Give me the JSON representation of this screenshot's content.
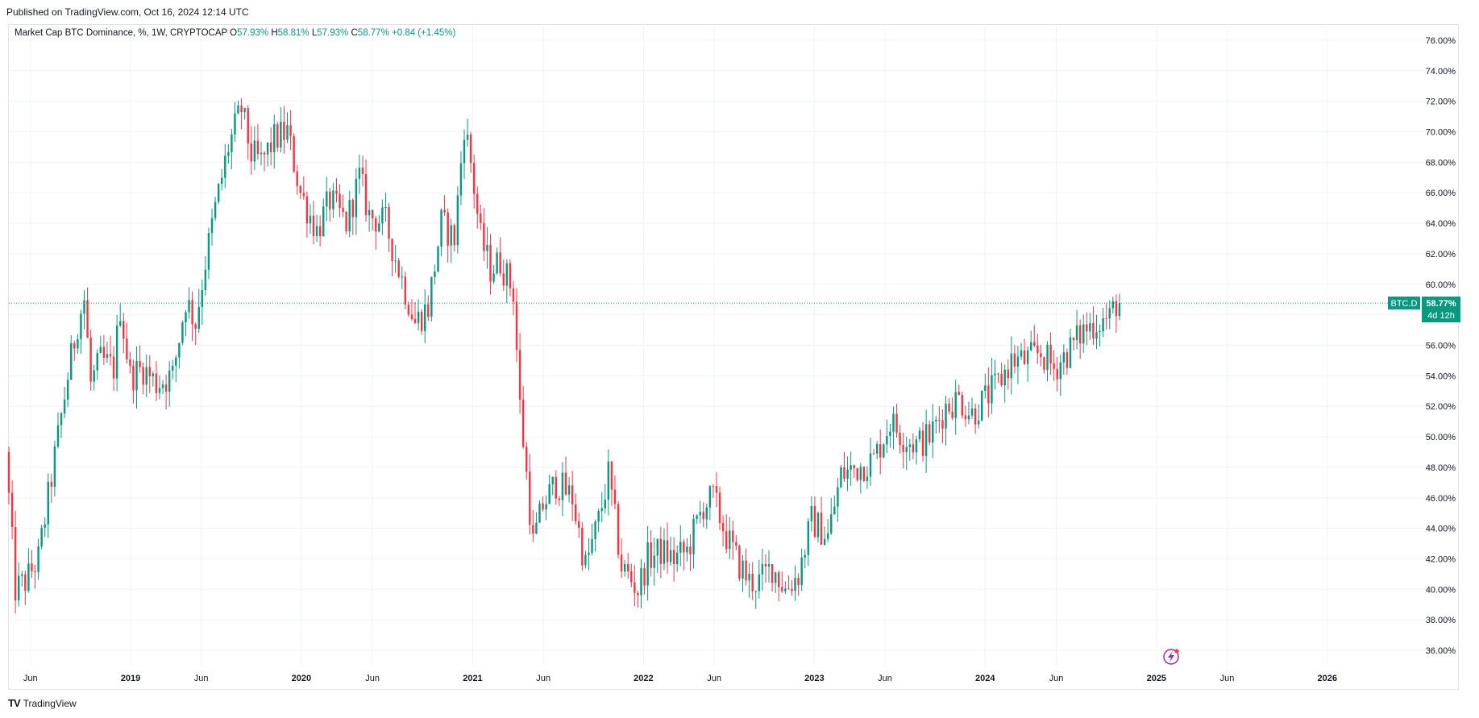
{
  "header": {
    "published": "Published on TradingView.com, Oct 16, 2024 12:14 UTC"
  },
  "legend": {
    "symbol": "Market Cap BTC Dominance, %, 1W, CRYPTOCAP",
    "o_label": "O",
    "o_value": "57.93%",
    "h_label": "H",
    "h_value": "58.81%",
    "l_label": "L",
    "l_value": "57.93%",
    "c_label": "C",
    "c_value": "58.77%",
    "change": "+0.84 (+1.45%)"
  },
  "price_tag": {
    "symbol": "BTC.D",
    "value": "58.77%",
    "countdown": "4d 12h"
  },
  "footer": {
    "brand": "TradingView",
    "logo": "TV"
  },
  "colors": {
    "up": "#089981",
    "down": "#f23645",
    "grid": "#f0f3fa",
    "last_line": "#089981"
  },
  "icons": {
    "lightning": "lightning-icon"
  },
  "chart_data": {
    "type": "candlestick",
    "y_unit": "%",
    "ylim": [
      35,
      77
    ],
    "x_range": [
      "2018-04-16",
      "2026-07-15"
    ],
    "y_ticks": [
      "76.00%",
      "74.00%",
      "72.00%",
      "70.00%",
      "68.00%",
      "66.00%",
      "64.00%",
      "62.00%",
      "60.00%",
      "58.00%",
      "56.00%",
      "54.00%",
      "52.00%",
      "50.00%",
      "48.00%",
      "46.00%",
      "44.00%",
      "42.00%",
      "40.00%",
      "38.00%",
      "36.00%"
    ],
    "x_ticks": [
      {
        "date": "2018-06-01",
        "label": "Jun",
        "year": false
      },
      {
        "date": "2019-01-01",
        "label": "2019",
        "year": true
      },
      {
        "date": "2019-06-01",
        "label": "Jun",
        "year": false
      },
      {
        "date": "2020-01-01",
        "label": "2020",
        "year": true
      },
      {
        "date": "2020-06-01",
        "label": "Jun",
        "year": false
      },
      {
        "date": "2021-01-01",
        "label": "2021",
        "year": true
      },
      {
        "date": "2021-06-01",
        "label": "Jun",
        "year": false
      },
      {
        "date": "2022-01-01",
        "label": "2022",
        "year": true
      },
      {
        "date": "2022-06-01",
        "label": "Jun",
        "year": false
      },
      {
        "date": "2023-01-01",
        "label": "2023",
        "year": true
      },
      {
        "date": "2023-06-01",
        "label": "Jun",
        "year": false
      },
      {
        "date": "2024-01-01",
        "label": "2024",
        "year": true
      },
      {
        "date": "2024-06-01",
        "label": "Jun",
        "year": false
      },
      {
        "date": "2025-01-01",
        "label": "2025",
        "year": true
      },
      {
        "date": "2025-06-01",
        "label": "Jun",
        "year": false
      },
      {
        "date": "2026-01-01",
        "label": "2026",
        "year": true
      }
    ],
    "last_value": 58.77,
    "grid": true,
    "anchors": [
      [
        "2018-04-16",
        49.0
      ],
      [
        "2018-05-07",
        40.0
      ],
      [
        "2018-05-28",
        40.5
      ],
      [
        "2018-06-25",
        42.0
      ],
      [
        "2018-07-16",
        46.0
      ],
      [
        "2018-08-06",
        50.0
      ],
      [
        "2018-08-27",
        54.0
      ],
      [
        "2018-09-17",
        57.5
      ],
      [
        "2018-10-01",
        59.0
      ],
      [
        "2018-10-15",
        53.5
      ],
      [
        "2018-11-05",
        55.0
      ],
      [
        "2018-12-03",
        54.5
      ],
      [
        "2018-12-17",
        58.5
      ],
      [
        "2019-01-07",
        54.0
      ],
      [
        "2019-02-04",
        54.5
      ],
      [
        "2019-03-04",
        53.5
      ],
      [
        "2019-04-08",
        54.0
      ],
      [
        "2019-05-06",
        59.0
      ],
      [
        "2019-05-27",
        57.5
      ],
      [
        "2019-06-17",
        61.5
      ],
      [
        "2019-07-08",
        65.0
      ],
      [
        "2019-08-05",
        69.0
      ],
      [
        "2019-09-02",
        71.5
      ],
      [
        "2019-09-23",
        68.5
      ],
      [
        "2019-10-14",
        68.0
      ],
      [
        "2019-11-11",
        69.5
      ],
      [
        "2019-12-09",
        70.0
      ],
      [
        "2020-01-06",
        66.0
      ],
      [
        "2020-02-10",
        63.5
      ],
      [
        "2020-03-09",
        65.5
      ],
      [
        "2020-04-13",
        64.0
      ],
      [
        "2020-05-11",
        67.0
      ],
      [
        "2020-06-01",
        64.5
      ],
      [
        "2020-07-06",
        64.0
      ],
      [
        "2020-08-03",
        61.0
      ],
      [
        "2020-09-07",
        57.5
      ],
      [
        "2020-10-05",
        58.5
      ],
      [
        "2020-11-02",
        64.0
      ],
      [
        "2020-11-30",
        63.0
      ],
      [
        "2020-12-21",
        70.5
      ],
      [
        "2021-01-04",
        68.0
      ],
      [
        "2021-01-25",
        63.0
      ],
      [
        "2021-02-15",
        61.0
      ],
      [
        "2021-03-08",
        61.5
      ],
      [
        "2021-04-05",
        59.5
      ],
      [
        "2021-04-19",
        52.0
      ],
      [
        "2021-05-17",
        43.0
      ],
      [
        "2021-06-07",
        45.5
      ],
      [
        "2021-07-05",
        47.0
      ],
      [
        "2021-08-09",
        46.0
      ],
      [
        "2021-09-06",
        41.5
      ],
      [
        "2021-10-04",
        44.5
      ],
      [
        "2021-10-25",
        47.5
      ],
      [
        "2021-11-22",
        41.5
      ],
      [
        "2021-12-27",
        40.0
      ],
      [
        "2022-01-17",
        42.0
      ],
      [
        "2022-02-14",
        42.5
      ],
      [
        "2022-03-14",
        42.0
      ],
      [
        "2022-04-11",
        42.5
      ],
      [
        "2022-05-16",
        45.5
      ],
      [
        "2022-06-06",
        46.0
      ],
      [
        "2022-07-04",
        43.5
      ],
      [
        "2022-07-25",
        42.0
      ],
      [
        "2022-08-22",
        40.5
      ],
      [
        "2022-09-12",
        40.5
      ],
      [
        "2022-10-10",
        41.5
      ],
      [
        "2022-11-07",
        40.0
      ],
      [
        "2022-12-05",
        41.0
      ],
      [
        "2023-01-02",
        44.5
      ],
      [
        "2023-02-06",
        43.5
      ],
      [
        "2023-03-06",
        47.5
      ],
      [
        "2023-04-10",
        48.0
      ],
      [
        "2023-05-15",
        48.5
      ],
      [
        "2023-06-19",
        51.0
      ],
      [
        "2023-07-17",
        50.0
      ],
      [
        "2023-08-14",
        49.5
      ],
      [
        "2023-09-11",
        50.0
      ],
      [
        "2023-10-16",
        52.0
      ],
      [
        "2023-11-13",
        52.5
      ],
      [
        "2023-12-11",
        51.5
      ],
      [
        "2024-01-08",
        52.5
      ],
      [
        "2024-02-05",
        53.5
      ],
      [
        "2024-03-04",
        55.0
      ],
      [
        "2024-04-01",
        55.0
      ],
      [
        "2024-05-06",
        55.5
      ],
      [
        "2024-06-03",
        54.5
      ],
      [
        "2024-07-01",
        55.5
      ],
      [
        "2024-08-05",
        57.0
      ],
      [
        "2024-09-02",
        57.5
      ],
      [
        "2024-09-30",
        57.8
      ],
      [
        "2024-10-14",
        58.77
      ]
    ]
  }
}
